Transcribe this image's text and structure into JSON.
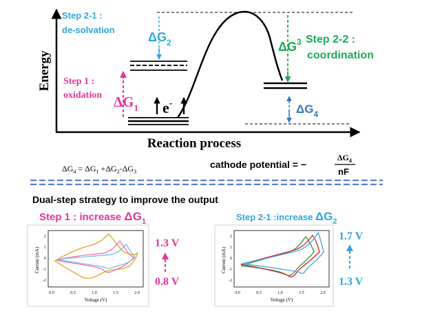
{
  "top": {
    "y_axis_label": "Energy",
    "x_axis_label": "Reaction process",
    "step1_title": "Step 1 :",
    "step1_sub": "oxidation",
    "step21_title": "Step 2-1 :",
    "step21_sub": "de-solvation",
    "step22_title": "Step 2-2 :",
    "step22_sub": "coordination",
    "dg_symbol": "ΔG",
    "dg1_sub": "1",
    "dg2_sub": "2",
    "dg3_sub": "3",
    "dg4_sub": "4",
    "electron_label": "e",
    "electron_sup": "-",
    "colors": {
      "step1": "#e8339a",
      "step21": "#2ea6df",
      "step22": "#1aaa55",
      "dg4": "#2f79c8"
    }
  },
  "equations": {
    "left_lhs": "ΔG",
    "left_lhs_sub": "4",
    "left_eq": " = ΔG",
    "left_t1_sub": "1",
    "left_plus": " +ΔG",
    "left_t2_sub": "2",
    "left_minus": "-ΔG",
    "left_t3_sub": "3",
    "right_prefix": "cathode potential = −",
    "right_num": "ΔG",
    "right_num_sub": "4",
    "right_den": "nF"
  },
  "bottom": {
    "heading": "Dual-step strategy to improve the output",
    "left_title": "Step 1 : increase ",
    "left_dg": "ΔG",
    "left_dg_sub": "1",
    "right_title": "Step 2-1 :increase ",
    "right_dg": "ΔG",
    "right_dg_sub": "2",
    "left_v_top": "1.3 V",
    "left_v_bottom": "0.8 V",
    "right_v_top": "1.7 V",
    "right_v_bottom": "1.3 V"
  },
  "cv_left": {
    "ylabel": "Current (mA)",
    "xlabel": "Voltage (V)",
    "xticks": [
      "0.0",
      "0.5",
      "1.0",
      "1.5",
      "2.0"
    ],
    "yticks": [
      "2",
      "1",
      "0",
      "-1",
      "-2"
    ],
    "series_colors": [
      "#e8a628",
      "#ee66aa",
      "#6fb6ee"
    ]
  },
  "cv_right": {
    "ylabel": "Current (mA)",
    "xlabel": "Voltage (V)",
    "xticks": [
      "0.0",
      "0.5",
      "1.0",
      "1.5",
      "2.0"
    ],
    "yticks": [
      "2",
      "1",
      "0",
      "-1",
      "-2"
    ],
    "series_colors": [
      "#2e9e3a",
      "#d62b2b",
      "#4aa8e8"
    ]
  }
}
